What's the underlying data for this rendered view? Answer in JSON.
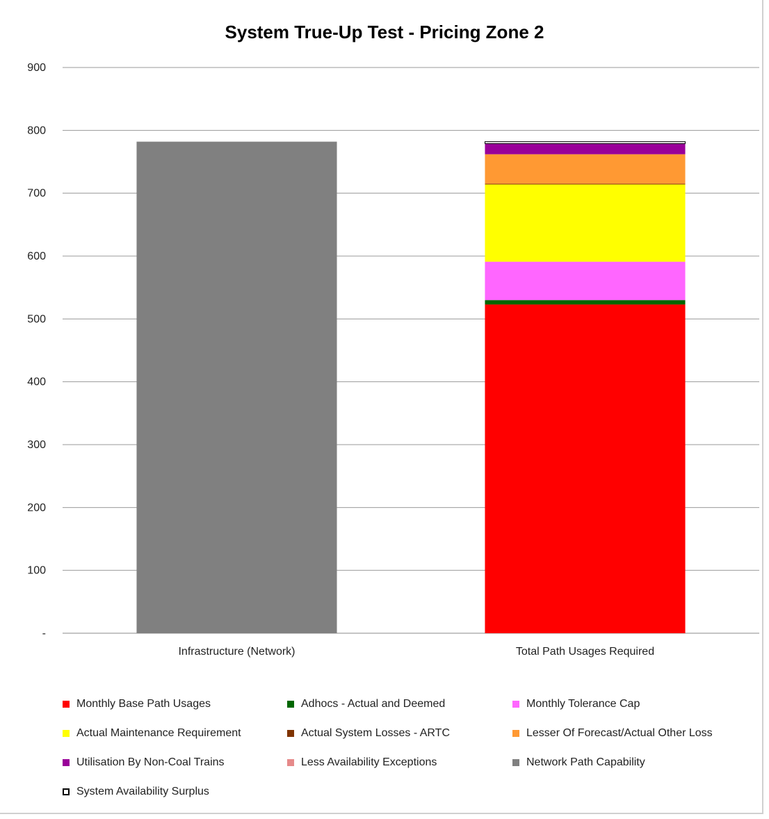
{
  "chart_data": {
    "type": "bar",
    "stacked": true,
    "title": "System True-Up Test - Pricing Zone 2",
    "xlabel": "",
    "ylabel": "",
    "ylim": [
      0,
      900
    ],
    "yticks": [
      0,
      100,
      200,
      300,
      400,
      500,
      600,
      700,
      800,
      900
    ],
    "ytick_labels": [
      "-",
      "100",
      "200",
      "300",
      "400",
      "500",
      "600",
      "700",
      "800",
      "900"
    ],
    "grid": true,
    "legend_position": "bottom",
    "categories": [
      "Infrastructure (Network)",
      "Total Path Usages Required"
    ],
    "series": [
      {
        "name": "Monthly Base Path Usages",
        "color": "#ff0000",
        "values": [
          0,
          523
        ]
      },
      {
        "name": "Adhocs - Actual and Deemed",
        "color": "#006600",
        "values": [
          0,
          7
        ]
      },
      {
        "name": "Monthly Tolerance Cap",
        "color": "#ff66ff",
        "values": [
          0,
          61
        ]
      },
      {
        "name": "Actual Maintenance Requirement",
        "color": "#ffff00",
        "values": [
          0,
          123
        ]
      },
      {
        "name": "Actual System Losses - ARTC",
        "color": "#7f3300",
        "values": [
          0,
          1
        ]
      },
      {
        "name": "Lesser Of Forecast/Actual Other Loss",
        "color": "#ff9933",
        "values": [
          0,
          47
        ]
      },
      {
        "name": "Utilisation By Non-Coal Trains",
        "color": "#990099",
        "values": [
          0,
          17
        ]
      },
      {
        "name": "Less Availability Exceptions",
        "color": "#e68a8a",
        "values": [
          0,
          0
        ]
      },
      {
        "name": "Network Path Capability",
        "color": "#808080",
        "values": [
          782,
          0
        ]
      },
      {
        "name": "System Availability Surplus",
        "color": "#ffffff",
        "outline": "#000000",
        "values": [
          0,
          3
        ]
      }
    ]
  }
}
